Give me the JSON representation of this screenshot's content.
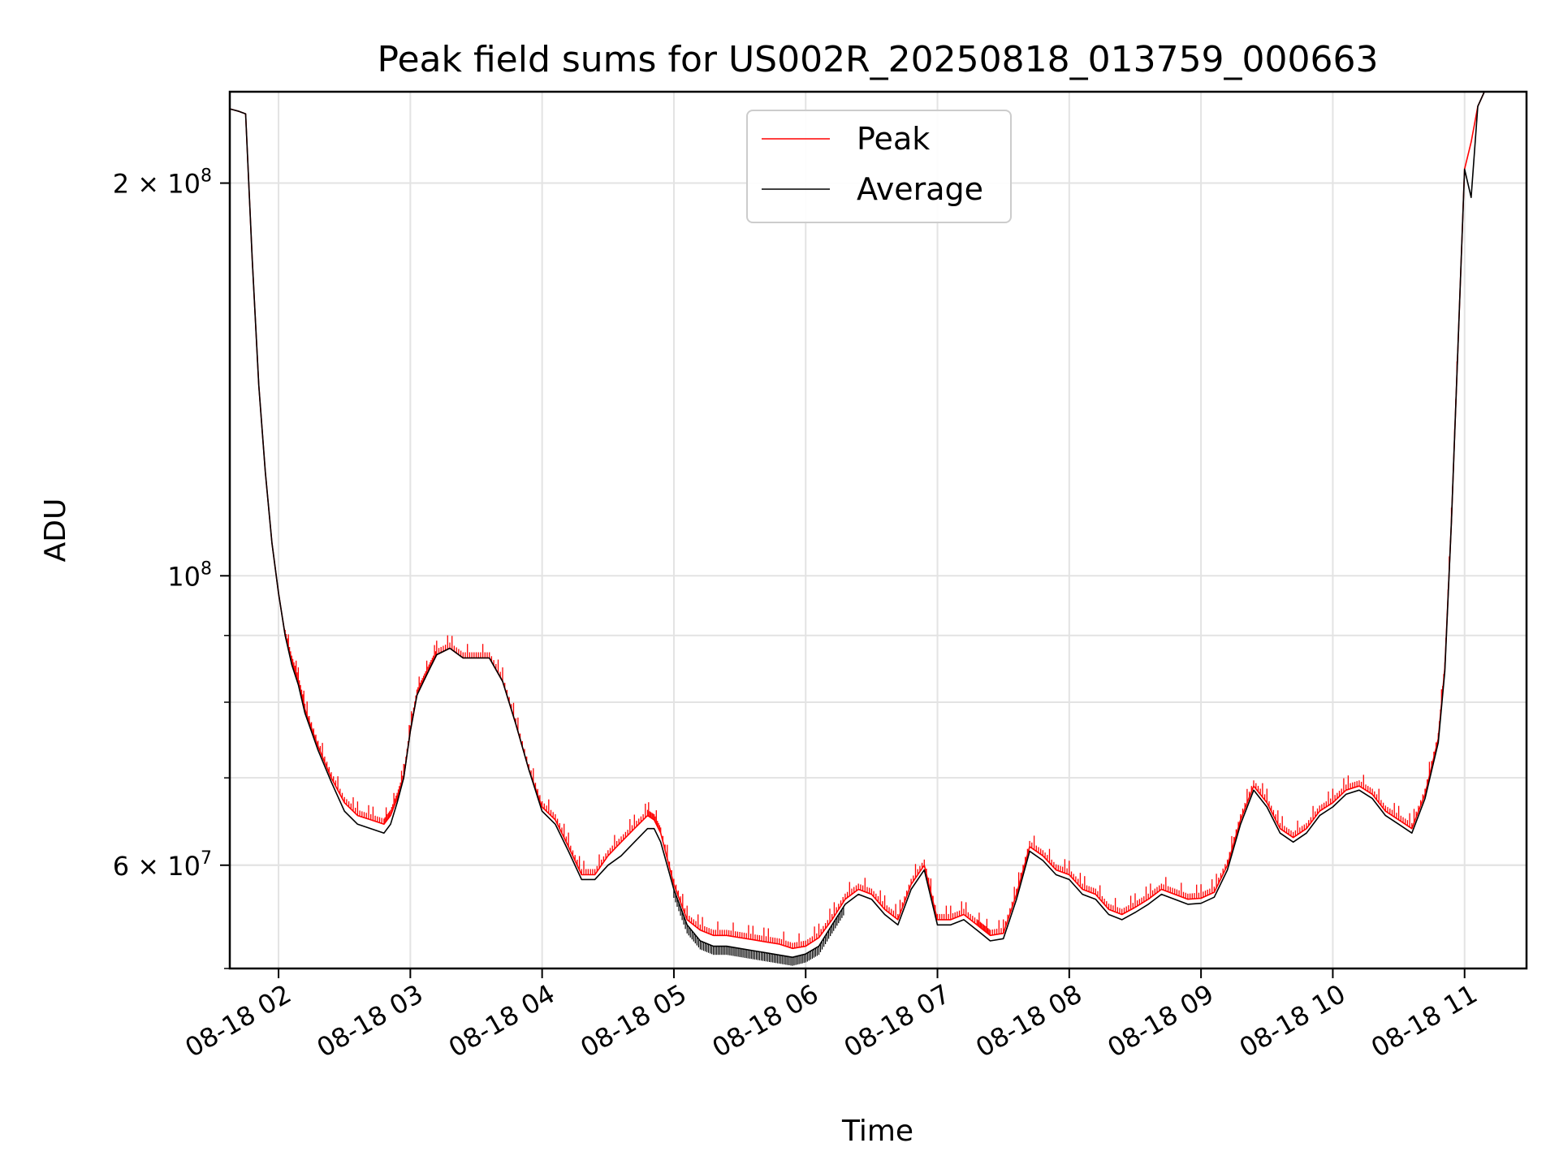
{
  "chart_data": {
    "type": "line",
    "title": "Peak field sums for US002R_20250818_013759_000663",
    "xlabel": "Time",
    "ylabel": "ADU",
    "x_unit": "hour on 08-18",
    "xlim": [
      1.63,
      11.47
    ],
    "ylim": [
      50000000,
      235000000
    ],
    "yscale": "log",
    "grid": true,
    "legend_position": "top-center",
    "x_ticks": [
      {
        "value": 2,
        "label": "08-18 02"
      },
      {
        "value": 3,
        "label": "08-18 03"
      },
      {
        "value": 4,
        "label": "08-18 04"
      },
      {
        "value": 5,
        "label": "08-18 05"
      },
      {
        "value": 6,
        "label": "08-18 06"
      },
      {
        "value": 7,
        "label": "08-18 07"
      },
      {
        "value": 8,
        "label": "08-18 08"
      },
      {
        "value": 9,
        "label": "08-18 09"
      },
      {
        "value": 10,
        "label": "08-18 10"
      },
      {
        "value": 11,
        "label": "08-18 11"
      }
    ],
    "y_major_ticks": [
      {
        "value": 60000000,
        "label_base": "6 × 10",
        "label_exp": "7"
      },
      {
        "value": 100000000,
        "label_base": "10",
        "label_exp": "8"
      },
      {
        "value": 200000000,
        "label_base": "2 × 10",
        "label_exp": "8"
      }
    ],
    "y_minor_ticks": [
      50000000,
      60000000,
      70000000,
      80000000,
      90000000,
      200000000
    ],
    "series": [
      {
        "name": "Peak",
        "color": "#ff0000",
        "x": [
          1.63,
          1.7,
          1.75,
          1.8,
          1.85,
          1.9,
          1.95,
          2.0,
          2.05,
          2.1,
          2.15,
          2.2,
          2.3,
          2.4,
          2.5,
          2.6,
          2.7,
          2.8,
          2.85,
          2.9,
          2.95,
          3.0,
          3.05,
          3.1,
          3.15,
          3.2,
          3.3,
          3.4,
          3.5,
          3.6,
          3.7,
          3.8,
          3.9,
          4.0,
          4.1,
          4.2,
          4.3,
          4.4,
          4.5,
          4.6,
          4.7,
          4.8,
          4.85,
          4.9,
          5.0,
          5.1,
          5.2,
          5.3,
          5.4,
          5.5,
          5.6,
          5.7,
          5.8,
          5.9,
          6.0,
          6.1,
          6.2,
          6.3,
          6.4,
          6.5,
          6.6,
          6.7,
          6.8,
          6.9,
          7.0,
          7.1,
          7.2,
          7.3,
          7.35,
          7.4,
          7.5,
          7.6,
          7.7,
          7.8,
          7.9,
          8.0,
          8.1,
          8.2,
          8.3,
          8.4,
          8.5,
          8.6,
          8.7,
          8.8,
          8.9,
          9.0,
          9.1,
          9.2,
          9.3,
          9.4,
          9.5,
          9.6,
          9.7,
          9.8,
          9.9,
          10.0,
          10.1,
          10.2,
          10.3,
          10.4,
          10.5,
          10.6,
          10.7,
          10.8,
          10.85,
          10.9,
          10.95,
          11.0,
          11.05,
          11.1,
          11.15,
          11.2,
          11.25,
          11.3
        ],
        "y": [
          228000000,
          227000000,
          226000000,
          175000000,
          140000000,
          120000000,
          106000000,
          97000000,
          90000000,
          86000000,
          83000000,
          79000000,
          74000000,
          70000000,
          67000000,
          65500000,
          65000000,
          64500000,
          65500000,
          67500000,
          70000000,
          76000000,
          81000000,
          83000000,
          85000000,
          87000000,
          88000000,
          86500000,
          86500000,
          86500000,
          83000000,
          77000000,
          71000000,
          66500000,
          65000000,
          62000000,
          59000000,
          59000000,
          61000000,
          62500000,
          64000000,
          65500000,
          65000000,
          63500000,
          58000000,
          54500000,
          53500000,
          53000000,
          53000000,
          52800000,
          52600000,
          52400000,
          52200000,
          51800000,
          52000000,
          52800000,
          54500000,
          56500000,
          57500000,
          57000000,
          55500000,
          54500000,
          58000000,
          60000000,
          54500000,
          54500000,
          55000000,
          54000000,
          53500000,
          53000000,
          53200000,
          57000000,
          62000000,
          61000000,
          59500000,
          59000000,
          57500000,
          57000000,
          55500000,
          55000000,
          55700000,
          56500000,
          57500000,
          57000000,
          56500000,
          56600000,
          57200000,
          60000000,
          65000000,
          69000000,
          67000000,
          64000000,
          63000000,
          64000000,
          66000000,
          67000000,
          68500000,
          69000000,
          68000000,
          66000000,
          65000000,
          64000000,
          68000000,
          75000000,
          85000000,
          110000000,
          150000000,
          205000000,
          215000000,
          229000000,
          235000000,
          235000000,
          235000000,
          235000000
        ],
        "note_spikes": true
      },
      {
        "name": "Average",
        "color": "#000000",
        "x": [
          1.63,
          1.7,
          1.75,
          1.8,
          1.85,
          1.9,
          1.95,
          2.0,
          2.05,
          2.1,
          2.15,
          2.2,
          2.3,
          2.4,
          2.5,
          2.6,
          2.7,
          2.8,
          2.85,
          2.9,
          2.95,
          3.0,
          3.05,
          3.1,
          3.15,
          3.2,
          3.3,
          3.4,
          3.5,
          3.6,
          3.7,
          3.8,
          3.9,
          4.0,
          4.1,
          4.2,
          4.3,
          4.4,
          4.5,
          4.6,
          4.7,
          4.8,
          4.85,
          4.9,
          5.0,
          5.1,
          5.2,
          5.3,
          5.4,
          5.5,
          5.6,
          5.7,
          5.8,
          5.9,
          6.0,
          6.1,
          6.2,
          6.3,
          6.4,
          6.5,
          6.6,
          6.7,
          6.8,
          6.9,
          7.0,
          7.1,
          7.2,
          7.3,
          7.35,
          7.4,
          7.5,
          7.6,
          7.7,
          7.8,
          7.9,
          8.0,
          8.1,
          8.2,
          8.3,
          8.4,
          8.5,
          8.6,
          8.7,
          8.8,
          8.9,
          9.0,
          9.1,
          9.2,
          9.3,
          9.4,
          9.5,
          9.6,
          9.7,
          9.8,
          9.9,
          10.0,
          10.1,
          10.2,
          10.3,
          10.4,
          10.5,
          10.6,
          10.7,
          10.8,
          10.85,
          10.9,
          10.95,
          11.0,
          11.05,
          11.1,
          11.15,
          11.2,
          11.25,
          11.3
        ],
        "y": [
          228000000,
          227000000,
          226000000,
          175000000,
          140000000,
          120000000,
          106000000,
          97000000,
          90000000,
          85500000,
          82500000,
          78500000,
          73500000,
          69500000,
          66000000,
          64500000,
          64000000,
          63500000,
          64500000,
          67000000,
          70000000,
          76000000,
          81000000,
          83000000,
          85000000,
          87000000,
          88000000,
          86500000,
          86500000,
          86500000,
          83000000,
          77000000,
          71000000,
          66000000,
          64500000,
          61500000,
          58500000,
          58500000,
          60000000,
          61000000,
          62500000,
          64000000,
          64000000,
          62500000,
          57500000,
          54000000,
          52500000,
          52000000,
          52000000,
          51800000,
          51600000,
          51400000,
          51200000,
          51000000,
          51300000,
          52000000,
          54000000,
          56000000,
          57000000,
          56500000,
          55000000,
          54000000,
          57500000,
          59500000,
          54000000,
          54000000,
          54500000,
          53500000,
          53000000,
          52500000,
          52700000,
          56500000,
          61500000,
          60500000,
          59000000,
          58500000,
          57000000,
          56500000,
          55000000,
          54500000,
          55200000,
          56000000,
          57000000,
          56500000,
          56000000,
          56100000,
          56700000,
          59500000,
          64500000,
          68500000,
          66500000,
          63500000,
          62500000,
          63500000,
          65500000,
          66500000,
          68000000,
          68500000,
          67500000,
          65500000,
          64500000,
          63500000,
          67500000,
          74500000,
          84500000,
          110000000,
          150000000,
          205000000,
          195000000,
          229000000,
          235000000,
          235000000,
          235000000,
          235000000
        ]
      }
    ]
  }
}
